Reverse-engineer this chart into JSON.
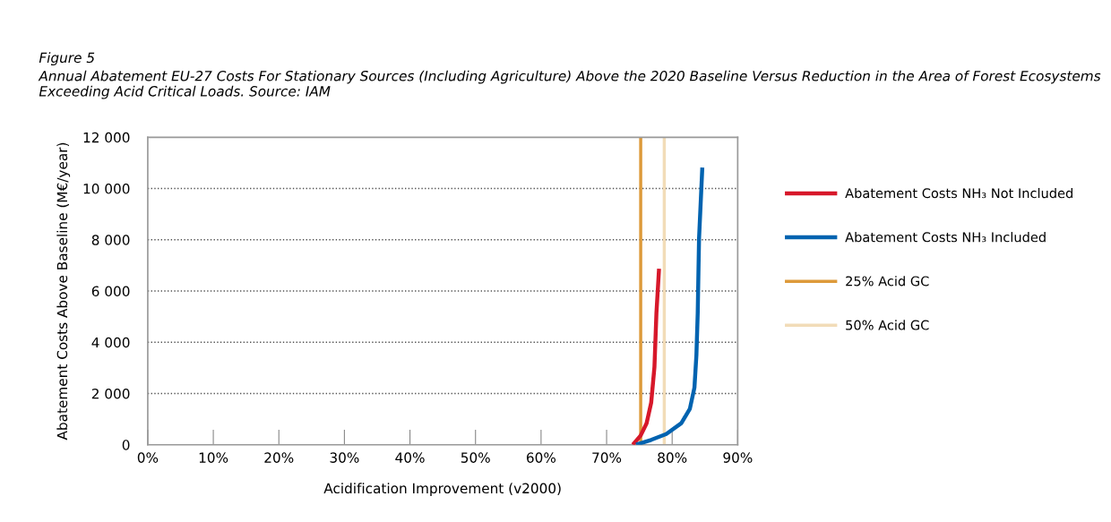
{
  "chart_data": {
    "type": "line",
    "title": "Figure 5",
    "subtitle": "Annual Abatement EU-27 Costs For Stationary Sources (Including Agriculture) Above the 2020 Baseline Versus Reduction in the Area of Forest Ecosystems Exceeding Acid Critical Loads. Source: IAM",
    "xlabel": "Acidification Improvement (v2000)",
    "ylabel": "Abatement Costs Above Baseline (M€/year)",
    "series": [
      {
        "name": "Abatement Costs NH₃ Not Included",
        "color": "#d7182a",
        "x": [
          74.0,
          75.2,
          76.1,
          76.8,
          77.3,
          77.6,
          78.0
        ],
        "values": [
          0,
          360,
          840,
          1640,
          3040,
          5130,
          6870
        ]
      },
      {
        "name": "Abatement Costs NH₃ Included",
        "color": "#0063b0",
        "x": [
          74.5,
          76.8,
          79.1,
          81.4,
          82.7,
          83.4,
          83.7,
          83.9,
          84.1,
          84.6
        ],
        "values": [
          0,
          190,
          420,
          840,
          1400,
          2230,
          3500,
          5130,
          8030,
          10820
        ]
      },
      {
        "name": "25% Acid GC",
        "color": "#dd9a3a",
        "x": [
          75.2,
          75.2
        ],
        "values": [
          0,
          12000
        ]
      },
      {
        "name": "50% Acid GC",
        "color": "#f2dcb8",
        "x": [
          78.8,
          78.8
        ],
        "values": [
          0,
          12000
        ]
      }
    ],
    "xlim": [
      0,
      90
    ],
    "xticks": [
      {
        "value": 0,
        "label": "0%"
      },
      {
        "value": 10,
        "label": "10%"
      },
      {
        "value": 20,
        "label": "20%"
      },
      {
        "value": 30,
        "label": "30%"
      },
      {
        "value": 40,
        "label": "40%"
      },
      {
        "value": 50,
        "label": "50%"
      },
      {
        "value": 60,
        "label": "60%"
      },
      {
        "value": 70,
        "label": "70%"
      },
      {
        "value": 80,
        "label": "80%"
      },
      {
        "value": 90,
        "label": "90%"
      }
    ],
    "ylim": [
      0,
      12000
    ],
    "yticks": [
      0,
      {
        "value": 2000,
        "label": "2 000"
      },
      {
        "value": 4000,
        "label": "4 000"
      },
      {
        "value": 6000,
        "label": "6 000"
      },
      {
        "value": 8000,
        "label": "8 000"
      },
      {
        "value": 10000,
        "label": "10 000"
      },
      {
        "value": 12000,
        "label": "12 000"
      }
    ],
    "grid": "y",
    "legend": "right",
    "line_style": "solid",
    "marker": "none"
  }
}
